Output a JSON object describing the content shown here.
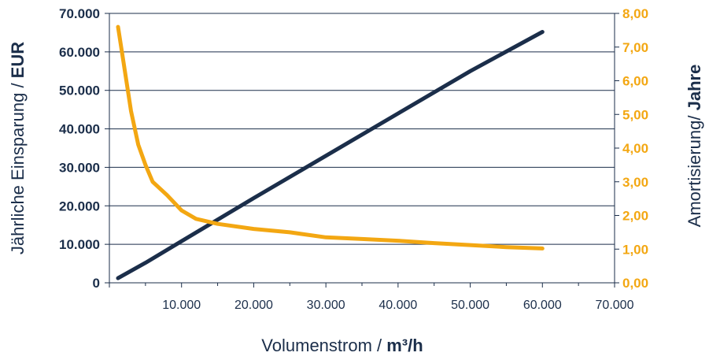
{
  "chart_data": {
    "type": "line",
    "title": "",
    "xlabel": {
      "main": "Volumenstrom / ",
      "unit": "m³/h"
    },
    "ylabel_left": {
      "main": "Jährliche Einsparung / ",
      "unit": "EUR"
    },
    "ylabel_right": {
      "main": "Amortisierung/ ",
      "unit": "Jahre"
    },
    "xlim": [
      0,
      70000
    ],
    "ylim_left": [
      0,
      70000
    ],
    "ylim_right": [
      0,
      8
    ],
    "x_ticks": [
      "10.000",
      "20.000",
      "30.000",
      "40.000",
      "50.000",
      "60.000",
      "70.000"
    ],
    "x_tick_values": [
      10000,
      20000,
      30000,
      40000,
      50000,
      60000,
      70000
    ],
    "y_left_ticks": [
      "0",
      "10.000",
      "20.000",
      "30.000",
      "40.000",
      "50.000",
      "60.000",
      "70.000"
    ],
    "y_left_tick_values": [
      0,
      10000,
      20000,
      30000,
      40000,
      50000,
      60000,
      70000
    ],
    "y_right_ticks": [
      "0,00",
      "1,00",
      "2,00",
      "3,00",
      "4,00",
      "5,00",
      "6,00",
      "7,00",
      "8,00"
    ],
    "y_right_tick_values": [
      0,
      1,
      2,
      3,
      4,
      5,
      6,
      7,
      8
    ],
    "grid": "horizontal",
    "series": [
      {
        "axis": "left",
        "color": "#1b2e4a",
        "x": [
          1200,
          5000,
          10000,
          20000,
          30000,
          40000,
          50000,
          60000
        ],
        "y": [
          1200,
          5200,
          10800,
          22000,
          33000,
          44000,
          55000,
          65200
        ]
      },
      {
        "axis": "right",
        "color": "#f3a712",
        "x": [
          1200,
          2000,
          3000,
          4000,
          5000,
          6000,
          8000,
          10000,
          12000,
          15000,
          20000,
          25000,
          30000,
          35000,
          40000,
          45000,
          50000,
          55000,
          60000
        ],
        "y": [
          7.6,
          6.5,
          5.1,
          4.1,
          3.5,
          3.0,
          2.6,
          2.15,
          1.9,
          1.75,
          1.6,
          1.5,
          1.35,
          1.3,
          1.25,
          1.18,
          1.12,
          1.06,
          1.02
        ]
      }
    ]
  }
}
